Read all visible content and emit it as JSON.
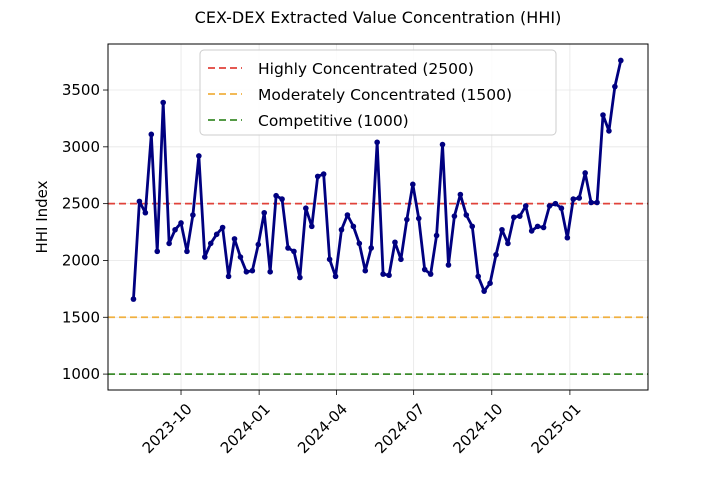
{
  "chart_data": {
    "type": "line",
    "title": "CEX-DEX Extracted Value Concentration (HHI)",
    "xlabel": "",
    "ylabel": "HHI Index",
    "xlim": [
      "2023-07-07",
      "2025-04-03"
    ],
    "ylim": [
      860,
      3905
    ],
    "grid": true,
    "legend_placement": "top-center",
    "xticks": [
      "2023-10",
      "2024-01",
      "2024-04",
      "2024-07",
      "2024-10",
      "2025-01"
    ],
    "yticks": [
      1000,
      1500,
      2000,
      2500,
      3000,
      3500
    ],
    "series": [
      {
        "color": "#000080",
        "marker": "circle",
        "x": [
          "2023-08-06",
          "2023-08-13",
          "2023-08-20",
          "2023-08-27",
          "2023-09-03",
          "2023-09-10",
          "2023-09-17",
          "2023-09-24",
          "2023-10-01",
          "2023-10-08",
          "2023-10-15",
          "2023-10-22",
          "2023-10-29",
          "2023-11-05",
          "2023-11-12",
          "2023-11-19",
          "2023-11-26",
          "2023-12-03",
          "2023-12-10",
          "2023-12-17",
          "2023-12-24",
          "2023-12-31",
          "2024-01-07",
          "2024-01-14",
          "2024-01-21",
          "2024-01-28",
          "2024-02-04",
          "2024-02-11",
          "2024-02-18",
          "2024-02-25",
          "2024-03-03",
          "2024-03-10",
          "2024-03-17",
          "2024-03-24",
          "2024-03-31",
          "2024-04-07",
          "2024-04-14",
          "2024-04-21",
          "2024-04-28",
          "2024-05-05",
          "2024-05-12",
          "2024-05-19",
          "2024-05-26",
          "2024-06-02",
          "2024-06-09",
          "2024-06-16",
          "2024-06-23",
          "2024-06-30",
          "2024-07-07",
          "2024-07-14",
          "2024-07-21",
          "2024-07-28",
          "2024-08-04",
          "2024-08-11",
          "2024-08-18",
          "2024-08-25",
          "2024-09-01",
          "2024-09-08",
          "2024-09-15",
          "2024-09-22",
          "2024-09-29",
          "2024-10-06",
          "2024-10-13",
          "2024-10-20",
          "2024-10-27",
          "2024-11-03",
          "2024-11-10",
          "2024-11-17",
          "2024-11-24",
          "2024-12-01",
          "2024-12-08",
          "2024-12-15",
          "2024-12-22",
          "2024-12-29",
          "2025-01-05",
          "2025-01-12",
          "2025-01-19",
          "2025-01-26",
          "2025-02-02",
          "2025-02-09",
          "2025-02-16",
          "2025-02-23",
          "2025-03-02"
        ],
        "values": [
          1660,
          2520,
          2420,
          3110,
          2080,
          3390,
          2150,
          2270,
          2330,
          2080,
          2400,
          2920,
          2030,
          2150,
          2230,
          2290,
          1860,
          2190,
          2030,
          1900,
          1910,
          2140,
          2420,
          1900,
          2570,
          2540,
          2110,
          2080,
          1850,
          2460,
          2300,
          2740,
          2760,
          2010,
          1860,
          2270,
          2400,
          2300,
          2150,
          1910,
          2110,
          3040,
          1880,
          1870,
          2160,
          2010,
          2360,
          2670,
          2370,
          1920,
          1880,
          2220,
          3020,
          1960,
          2390,
          2580,
          2400,
          2300,
          1860,
          1730,
          1800,
          2050,
          2270,
          2150,
          2380,
          2390,
          2480,
          2260,
          2300,
          2290,
          2480,
          2500,
          2460,
          2200,
          2540,
          2550,
          2770,
          2510,
          2510,
          3280,
          3140,
          3530,
          3760
        ]
      }
    ],
    "reference_lines": [
      {
        "label": "Highly Concentrated (2500)",
        "value": 2500,
        "color": "#e0423a",
        "style": "dashed"
      },
      {
        "label": "Moderately Concentrated (1500)",
        "value": 1500,
        "color": "#f0b040",
        "style": "dashed"
      },
      {
        "label": "Competitive (1000)",
        "value": 1000,
        "color": "#3c8c2c",
        "style": "dashed"
      }
    ]
  }
}
